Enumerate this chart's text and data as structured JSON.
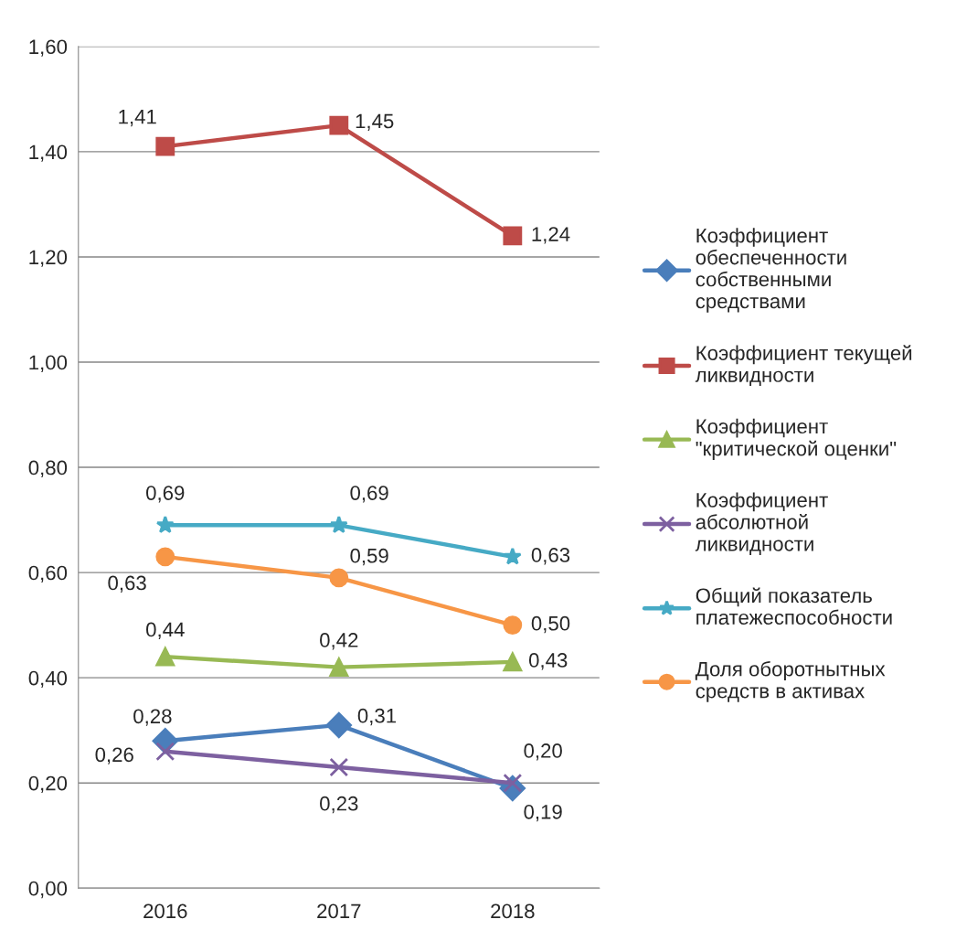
{
  "chart_data": {
    "type": "line",
    "categories": [
      "2016",
      "2017",
      "2018"
    ],
    "ylim": [
      0,
      1.6
    ],
    "yticks": [
      {
        "value": 0,
        "label": "0,00"
      },
      {
        "value": 0.2,
        "label": "0,20"
      },
      {
        "value": 0.4,
        "label": "0,40"
      },
      {
        "value": 0.6,
        "label": "0,60"
      },
      {
        "value": 0.8,
        "label": "0,80"
      },
      {
        "value": 1.0,
        "label": "1,00"
      },
      {
        "value": 1.2,
        "label": "1,20"
      },
      {
        "value": 1.4,
        "label": "1,40"
      },
      {
        "value": 1.6,
        "label": "1,60"
      }
    ],
    "grid": "y",
    "legend": "right",
    "series": [
      {
        "name": "Коэффициент обеспеченности собственными средствами",
        "color": "#4a7ebb",
        "marker": "diamond",
        "values": [
          0.28,
          0.31,
          0.19
        ],
        "value_labels": [
          "0,28",
          "0,31",
          "0,19"
        ]
      },
      {
        "name": "Коэффициент текущей ликвидности",
        "color": "#be4b48",
        "marker": "square",
        "values": [
          1.41,
          1.45,
          1.24
        ],
        "value_labels": [
          "1,41",
          "1,45",
          "1,24"
        ]
      },
      {
        "name": "Коэффициент \"критической оценки\"",
        "color": "#98b954",
        "marker": "triangle",
        "values": [
          0.44,
          0.42,
          0.43
        ],
        "value_labels": [
          "0,44",
          "0,42",
          "0,43"
        ]
      },
      {
        "name": "Коэффициент абсолютной ликвидности",
        "color": "#7d60a0",
        "marker": "cross",
        "values": [
          0.26,
          0.23,
          0.2
        ],
        "value_labels": [
          "0,26",
          "0,23",
          "0,20"
        ]
      },
      {
        "name": "Общий показатель платежеспособности",
        "color": "#46aac5",
        "marker": "star",
        "values": [
          0.69,
          0.69,
          0.63
        ],
        "value_labels": [
          "0,69",
          "0,69",
          "0,63"
        ]
      },
      {
        "name": "Доля оборотнытных средств в активах",
        "color": "#f79646",
        "marker": "circle",
        "values": [
          0.63,
          0.59,
          0.5
        ],
        "value_labels": [
          "0,63",
          "0,59",
          "0,50"
        ]
      }
    ]
  }
}
